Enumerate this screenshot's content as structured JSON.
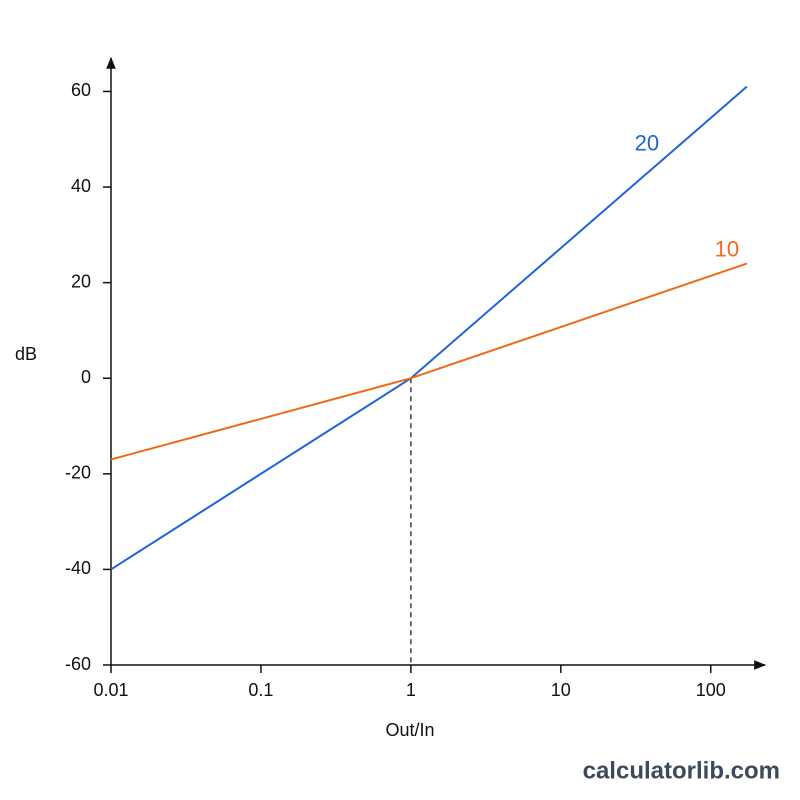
{
  "chart_data": {
    "type": "line",
    "x_label": "Out/In",
    "y_label": "dB",
    "x": [
      0.01,
      1,
      174
    ],
    "series": [
      {
        "name": "20",
        "color": "#1f64d6",
        "values": [
          -40,
          0,
          61
        ]
      },
      {
        "name": "10",
        "color": "#ee6a1a",
        "values": [
          -17,
          0,
          24
        ]
      }
    ],
    "xscale": "log",
    "xlim": [
      0.01,
      230
    ],
    "xticks": [
      0.01,
      0.1,
      1,
      10,
      100
    ],
    "ylim": [
      -60,
      67
    ],
    "yticks": [
      -60,
      -40,
      -20,
      0,
      20,
      40,
      60
    ],
    "grid": false,
    "watermark": "calculatorlib.com"
  }
}
